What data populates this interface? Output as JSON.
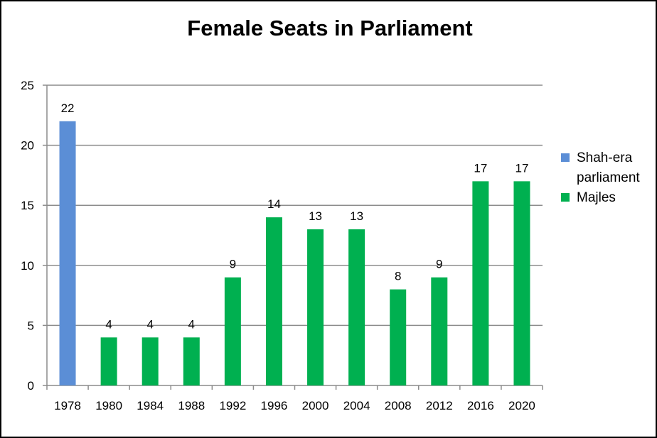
{
  "chart_data": {
    "type": "bar",
    "title": "Female Seats in Parliament",
    "categories": [
      "1978",
      "1980",
      "1984",
      "1988",
      "1992",
      "1996",
      "2000",
      "2004",
      "2008",
      "2012",
      "2016",
      "2020"
    ],
    "series": [
      {
        "name": "Shah-era parliament",
        "color": "#5B8ED6",
        "values": [
          22,
          null,
          null,
          null,
          null,
          null,
          null,
          null,
          null,
          null,
          null,
          null
        ]
      },
      {
        "name": "Majles",
        "color": "#00B050",
        "values": [
          null,
          4,
          4,
          4,
          9,
          14,
          13,
          13,
          8,
          9,
          17,
          17
        ]
      }
    ],
    "legend_labels": [
      [
        "Shah-era",
        "parliament"
      ],
      [
        "Majles"
      ]
    ],
    "ylim": [
      0,
      25
    ],
    "yticks": [
      0,
      5,
      10,
      15,
      20,
      25
    ],
    "ytick_labels": [
      "0",
      "5",
      "10",
      "15",
      "20",
      "25"
    ],
    "data_labels": [
      "22",
      "4",
      "4",
      "4",
      "9",
      "14",
      "13",
      "13",
      "8",
      "9",
      "17",
      "17"
    ],
    "grid": true,
    "legend_position": "right",
    "xlabel": "",
    "ylabel": ""
  }
}
